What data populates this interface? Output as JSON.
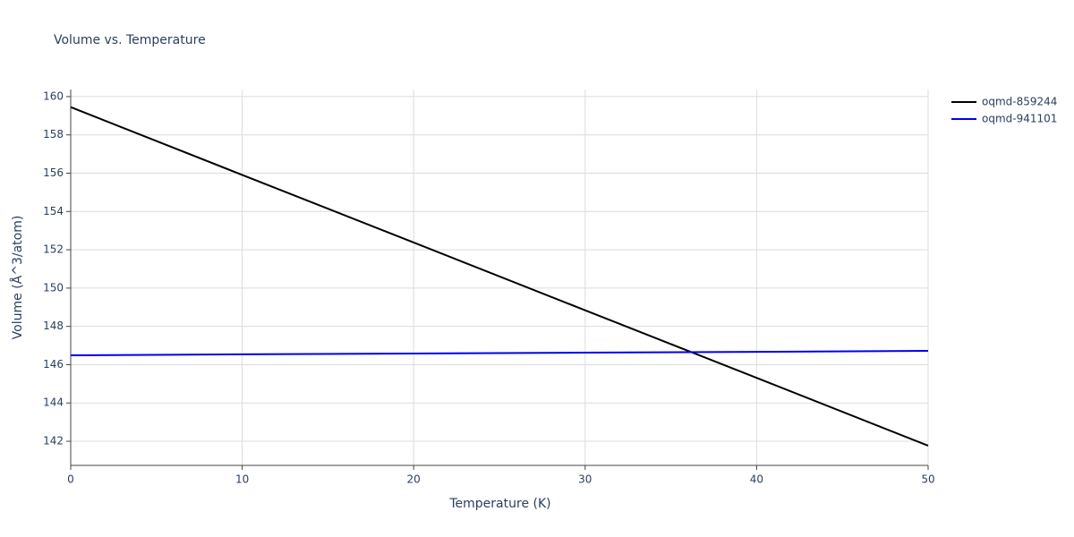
{
  "chart_data": {
    "type": "line",
    "title": "Volume vs. Temperature",
    "x_label": "Temperature (K)",
    "y_label": "Volume (Å^3/atom)",
    "x": [
      0,
      10,
      20,
      30,
      40,
      50
    ],
    "series": [
      {
        "name": "oqmd-859244",
        "color": "#000000",
        "values": [
          159.45,
          155.91,
          152.38,
          148.84,
          145.31,
          141.77
        ]
      },
      {
        "name": "oqmd-941101",
        "color": "#0000ee",
        "values": [
          146.49,
          146.54,
          146.58,
          146.63,
          146.67,
          146.72
        ]
      }
    ],
    "xlim": [
      0,
      50
    ],
    "xticks": [
      0,
      10,
      20,
      30,
      40,
      50
    ],
    "ylim": [
      140.74,
      160.37
    ],
    "yticks": [
      142,
      144,
      146,
      148,
      150,
      152,
      154,
      156,
      158,
      160
    ],
    "grid": true,
    "legend": "top-right"
  }
}
